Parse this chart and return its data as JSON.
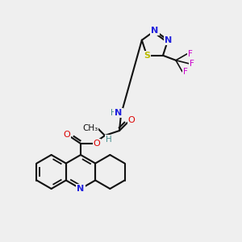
{
  "bg_color": "#efefef",
  "colors": {
    "N": "#2020dd",
    "O": "#dd0000",
    "S": "#bbbb00",
    "F": "#cc00cc",
    "C": "#111111",
    "H": "#4a9090",
    "bond": "#111111"
  },
  "figsize": [
    3.0,
    3.0
  ],
  "dpi": 100
}
